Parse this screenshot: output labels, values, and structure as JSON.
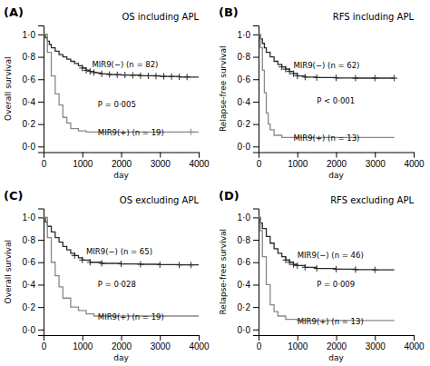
{
  "chart_data": [
    {
      "type": "step",
      "panel_label": "(A)",
      "title": "OS including APL",
      "xlabel": "day",
      "ylabel": "Overall survival",
      "xlim": [
        0,
        4000
      ],
      "ylim": [
        -0.05,
        1.08
      ],
      "xticks": [
        0,
        1000,
        2000,
        3000,
        4000
      ],
      "yticks": [
        {
          "value": 0.0,
          "label": "0·0"
        },
        {
          "value": 0.2,
          "label": "0·2"
        },
        {
          "value": 0.4,
          "label": "0·4"
        },
        {
          "value": 0.6,
          "label": "0·6"
        },
        {
          "value": 0.8,
          "label": "0·8"
        },
        {
          "value": 1.0,
          "label": "1·0"
        }
      ],
      "series": [
        {
          "type": "step",
          "color": "#2b2b2b",
          "x": [
            0,
            50,
            100,
            150,
            200,
            300,
            400,
            500,
            600,
            700,
            800,
            900,
            1000,
            1100,
            1200,
            1300,
            1400,
            1500,
            1700,
            2000,
            2500,
            3000,
            3500,
            4000
          ],
          "values": [
            1.0,
            0.97,
            0.94,
            0.91,
            0.88,
            0.85,
            0.82,
            0.8,
            0.78,
            0.76,
            0.74,
            0.72,
            0.7,
            0.68,
            0.67,
            0.66,
            0.655,
            0.648,
            0.642,
            0.638,
            0.632,
            0.625,
            0.62,
            0.62
          ]
        },
        {
          "type": "step",
          "color": "#888888",
          "x": [
            0,
            100,
            200,
            300,
            400,
            500,
            600,
            700,
            900,
            1100,
            4000
          ],
          "values": [
            1.0,
            0.84,
            0.63,
            0.47,
            0.37,
            0.26,
            0.21,
            0.16,
            0.14,
            0.13,
            0.13
          ]
        },
        {
          "type": "scatter",
          "marker": "plus",
          "color": "#2b2b2b",
          "x": [
            1000,
            1100,
            1200,
            1300,
            1500,
            1700,
            1900,
            2100,
            2300,
            2500,
            2700,
            2900,
            3100,
            3300,
            3500,
            3700
          ],
          "values": [
            0.7,
            0.68,
            0.67,
            0.66,
            0.648,
            0.642,
            0.64,
            0.638,
            0.635,
            0.632,
            0.63,
            0.628,
            0.626,
            0.624,
            0.622,
            0.62
          ]
        },
        {
          "type": "scatter",
          "marker": "plus",
          "color": "#888888",
          "x": [
            3800
          ],
          "values": [
            0.13
          ]
        }
      ],
      "annotations": [
        {
          "text": "MIR9(−) (n = 82)",
          "x": 1250,
          "y": 0.71
        },
        {
          "text": "MIR9(+) (n = 19)",
          "x": 1400,
          "y": 0.1
        },
        {
          "text": "P = 0·005",
          "x": 1400,
          "y": 0.35
        }
      ]
    },
    {
      "type": "step",
      "panel_label": "(B)",
      "title": "RFS including APL",
      "xlabel": "day",
      "ylabel": "Relapse-free survival",
      "xlim": [
        0,
        4000
      ],
      "ylim": [
        -0.05,
        1.08
      ],
      "xticks": [
        0,
        1000,
        2000,
        3000,
        4000
      ],
      "yticks": [
        {
          "value": 0.0,
          "label": "0·0"
        },
        {
          "value": 0.2,
          "label": "0·2"
        },
        {
          "value": 0.4,
          "label": "0·4"
        },
        {
          "value": 0.6,
          "label": "0·6"
        },
        {
          "value": 0.8,
          "label": "0·8"
        },
        {
          "value": 1.0,
          "label": "1·0"
        }
      ],
      "series": [
        {
          "type": "step",
          "color": "#2b2b2b",
          "x": [
            0,
            50,
            100,
            150,
            200,
            300,
            400,
            500,
            600,
            700,
            800,
            900,
            1000,
            1200,
            1500,
            2000,
            2500,
            3000,
            3500
          ],
          "values": [
            1.0,
            0.96,
            0.92,
            0.88,
            0.84,
            0.8,
            0.76,
            0.73,
            0.71,
            0.69,
            0.67,
            0.65,
            0.63,
            0.62,
            0.615,
            0.612,
            0.61,
            0.61,
            0.61
          ]
        },
        {
          "type": "step",
          "color": "#888888",
          "x": [
            0,
            50,
            100,
            150,
            200,
            250,
            300,
            400,
            600,
            800,
            3500
          ],
          "values": [
            1.0,
            0.88,
            0.68,
            0.48,
            0.3,
            0.2,
            0.15,
            0.1,
            0.08,
            0.08,
            0.08
          ]
        },
        {
          "type": "scatter",
          "marker": "plus",
          "color": "#2b2b2b",
          "x": [
            600,
            700,
            800,
            900,
            1000,
            1200,
            1500,
            2000,
            2500,
            3000,
            3500
          ],
          "values": [
            0.71,
            0.69,
            0.67,
            0.65,
            0.63,
            0.62,
            0.615,
            0.612,
            0.61,
            0.61,
            0.61
          ]
        }
      ],
      "annotations": [
        {
          "text": "MIR9(−) (n = 62)",
          "x": 900,
          "y": 0.7
        },
        {
          "text": "MIR9(+) (n = 13)",
          "x": 900,
          "y": 0.05
        },
        {
          "text": "P < 0·001",
          "x": 1500,
          "y": 0.38
        }
      ]
    },
    {
      "type": "step",
      "panel_label": "(C)",
      "title": "OS excluding APL",
      "xlabel": "day",
      "ylabel": "Overall survival",
      "xlim": [
        0,
        4000
      ],
      "ylim": [
        -0.05,
        1.08
      ],
      "xticks": [
        0,
        1000,
        2000,
        3000,
        4000
      ],
      "yticks": [
        {
          "value": 0.0,
          "label": "0·0"
        },
        {
          "value": 0.2,
          "label": "0·2"
        },
        {
          "value": 0.4,
          "label": "0·4"
        },
        {
          "value": 0.6,
          "label": "0·6"
        },
        {
          "value": 0.8,
          "label": "0·8"
        },
        {
          "value": 1.0,
          "label": "1·0"
        }
      ],
      "series": [
        {
          "type": "step",
          "color": "#2b2b2b",
          "x": [
            0,
            50,
            100,
            200,
            300,
            400,
            500,
            600,
            700,
            800,
            900,
            1000,
            1200,
            1500,
            2000,
            2500,
            3000,
            3500,
            4000
          ],
          "values": [
            1.0,
            0.96,
            0.92,
            0.87,
            0.82,
            0.78,
            0.74,
            0.71,
            0.68,
            0.66,
            0.64,
            0.62,
            0.6,
            0.59,
            0.585,
            0.582,
            0.578,
            0.576,
            0.576
          ]
        },
        {
          "type": "step",
          "color": "#888888",
          "x": [
            0,
            100,
            200,
            300,
            400,
            500,
            700,
            900,
            1100,
            1300,
            4000
          ],
          "values": [
            1.0,
            0.82,
            0.6,
            0.48,
            0.38,
            0.28,
            0.2,
            0.17,
            0.14,
            0.12,
            0.12
          ]
        },
        {
          "type": "scatter",
          "marker": "plus",
          "color": "#2b2b2b",
          "x": [
            800,
            1000,
            1200,
            1500,
            2000,
            2500,
            3000,
            3500,
            3800
          ],
          "values": [
            0.66,
            0.62,
            0.6,
            0.59,
            0.585,
            0.582,
            0.578,
            0.576,
            0.576
          ]
        }
      ],
      "annotations": [
        {
          "text": "MIR9(−) (n = 65)",
          "x": 1100,
          "y": 0.67
        },
        {
          "text": "MIR9(+) (n = 19)",
          "x": 1400,
          "y": 0.09
        },
        {
          "text": "P = 0·028",
          "x": 1400,
          "y": 0.38
        }
      ]
    },
    {
      "type": "step",
      "panel_label": "(D)",
      "title": "RFS excluding APL",
      "xlabel": "day",
      "ylabel": "Relapse-free survival",
      "xlim": [
        0,
        4000
      ],
      "ylim": [
        -0.05,
        1.08
      ],
      "xticks": [
        0,
        1000,
        2000,
        3000,
        4000
      ],
      "yticks": [
        {
          "value": 0.0,
          "label": "0·0"
        },
        {
          "value": 0.2,
          "label": "0·2"
        },
        {
          "value": 0.4,
          "label": "0·4"
        },
        {
          "value": 0.6,
          "label": "0·6"
        },
        {
          "value": 0.8,
          "label": "0·8"
        },
        {
          "value": 1.0,
          "label": "1·0"
        }
      ],
      "series": [
        {
          "type": "step",
          "color": "#2b2b2b",
          "x": [
            0,
            50,
            100,
            200,
            300,
            400,
            500,
            600,
            700,
            800,
            900,
            1000,
            1200,
            1500,
            2000,
            2500,
            3000,
            3500
          ],
          "values": [
            1.0,
            0.95,
            0.9,
            0.83,
            0.77,
            0.72,
            0.68,
            0.65,
            0.62,
            0.6,
            0.58,
            0.57,
            0.555,
            0.545,
            0.538,
            0.534,
            0.532,
            0.532
          ]
        },
        {
          "type": "step",
          "color": "#888888",
          "x": [
            0,
            50,
            100,
            200,
            300,
            400,
            500,
            700,
            1000,
            3500
          ],
          "values": [
            1.0,
            0.88,
            0.65,
            0.4,
            0.22,
            0.16,
            0.12,
            0.09,
            0.08,
            0.08
          ]
        },
        {
          "type": "scatter",
          "marker": "plus",
          "color": "#2b2b2b",
          "x": [
            700,
            800,
            900,
            1000,
            1200,
            1500,
            2000,
            2500,
            3000
          ],
          "values": [
            0.62,
            0.6,
            0.58,
            0.57,
            0.555,
            0.545,
            0.538,
            0.534,
            0.532
          ]
        }
      ],
      "annotations": [
        {
          "text": "MIR9(−) (n = 46)",
          "x": 1000,
          "y": 0.64
        },
        {
          "text": "MIR9(+) (n = 13)",
          "x": 1000,
          "y": 0.05
        },
        {
          "text": "P = 0·009",
          "x": 1500,
          "y": 0.38
        }
      ]
    }
  ]
}
